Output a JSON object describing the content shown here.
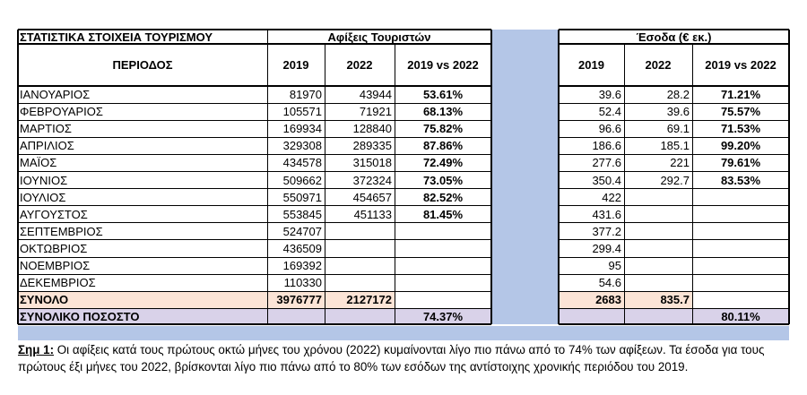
{
  "title": "ΣΤΑΤΙΣΤΙΚΑ ΣΤΟΙΧΕΙΑ ΤΟΥΡΙΣΜΟΥ",
  "arrivals_header": "Αφίξεις Τουριστών",
  "revenue_header": "Έσοδα (€ εκ.)",
  "period_header": "ΠΕΡΙΟΔΟΣ",
  "col_2019": "2019",
  "col_2022": "2022",
  "col_pct": "2019 vs 2022",
  "rows": [
    {
      "month": "ΙΑΝΟΥΑΡΙΟΣ",
      "a2019": "81970",
      "a2022": "43944",
      "apct": "53.61%",
      "r2019": "39.6",
      "r2022": "28.2",
      "rpct": "71.21%"
    },
    {
      "month": "ΦΕΒΡΟΥΑΡΙΟΣ",
      "a2019": "105571",
      "a2022": "71921",
      "apct": "68.13%",
      "r2019": "52.4",
      "r2022": "39.6",
      "rpct": "75.57%"
    },
    {
      "month": "ΜΑΡΤΙΟΣ",
      "a2019": "169934",
      "a2022": "128840",
      "apct": "75.82%",
      "r2019": "96.6",
      "r2022": "69.1",
      "rpct": "71.53%"
    },
    {
      "month": "ΑΠΡΙΛΙΟΣ",
      "a2019": "329308",
      "a2022": "289335",
      "apct": "87.86%",
      "r2019": "186.6",
      "r2022": "185.1",
      "rpct": "99.20%"
    },
    {
      "month": "ΜΑΪΟΣ",
      "a2019": "434578",
      "a2022": "315018",
      "apct": "72.49%",
      "r2019": "277.6",
      "r2022": "221",
      "rpct": "79.61%"
    },
    {
      "month": "ΙΟΥΝΙΟΣ",
      "a2019": "509662",
      "a2022": "372324",
      "apct": "73.05%",
      "r2019": "350.4",
      "r2022": "292.7",
      "rpct": "83.53%"
    },
    {
      "month": "ΙΟΥΛΙΟΣ",
      "a2019": "550971",
      "a2022": "454657",
      "apct": "82.52%",
      "r2019": "422",
      "r2022": "",
      "rpct": ""
    },
    {
      "month": "ΑΥΓΟΥΣΤΟΣ",
      "a2019": "553845",
      "a2022": "451133",
      "apct": "81.45%",
      "r2019": "431.6",
      "r2022": "",
      "rpct": ""
    },
    {
      "month": "ΣΕΠΤΕΜΒΡΙΟΣ",
      "a2019": "524707",
      "a2022": "",
      "apct": "",
      "r2019": "377.2",
      "r2022": "",
      "rpct": ""
    },
    {
      "month": "ΟΚΤΩΒΡΙΟΣ",
      "a2019": "436509",
      "a2022": "",
      "apct": "",
      "r2019": "299.4",
      "r2022": "",
      "rpct": ""
    },
    {
      "month": "ΝΟΕΜΒΡΙΟΣ",
      "a2019": "169392",
      "a2022": "",
      "apct": "",
      "r2019": "95",
      "r2022": "",
      "rpct": ""
    },
    {
      "month": "ΔΕΚΕΜΒΡΙΟΣ",
      "a2019": "110330",
      "a2022": "",
      "apct": "",
      "r2019": "54.6",
      "r2022": "",
      "rpct": ""
    }
  ],
  "total": {
    "label": "ΣΥΝΟΛΟ",
    "a2019": "3976777",
    "a2022": "2127172",
    "r2019": "2683",
    "r2022": "835.7"
  },
  "total_pct": {
    "label": "ΣΥΝΟΛΙΚΟ ΠΟΣΟΣΤΟ",
    "apct": "74.37%",
    "rpct": "80.11%"
  },
  "note": {
    "label": "Σημ 1:",
    "text": " Οι αφίξεις κατά τους πρώτους οκτώ μήνες του χρόνου (2022) κυμαίνονται λίγο πιο πάνω από το 74% των αφίξεων. Τα έσοδα για τους πρώτους έξι μήνες του 2022, βρίσκονται λίγο πιο πάνω από το 80% των εσόδων της αντίστοιχης χρονικής περιόδου του 2019."
  },
  "colors": {
    "gap_column": "#b4c6e7",
    "total_row": "#fce4d6",
    "pct_row": "#d9d2e9",
    "bottom_band": "#b4c6e7"
  }
}
